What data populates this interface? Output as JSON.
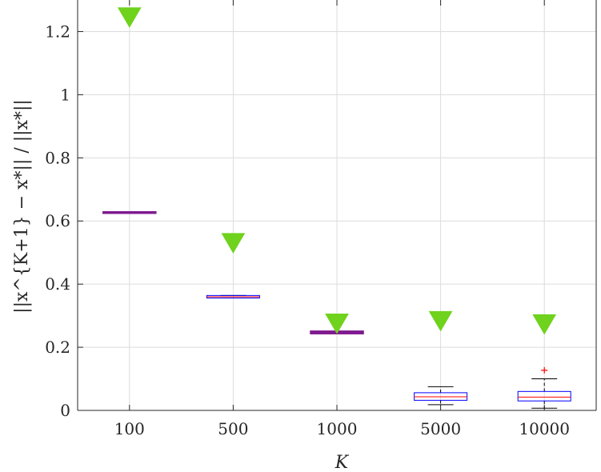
{
  "chart_data": {
    "type": "boxplot",
    "categories": [
      "100",
      "500",
      "1000",
      "5000",
      "10000"
    ],
    "xlabel": "K",
    "ylabel": "||x^{K+1} − x*|| / ||x*||",
    "ylim": [
      0,
      1.3
    ],
    "yticks": [
      0,
      0.2,
      0.4,
      0.6,
      0.8,
      1,
      1.2
    ],
    "ytick_labels": [
      "0",
      "0.2",
      "0.4",
      "0.6",
      "0.8",
      "1",
      "1.2"
    ],
    "grid": true,
    "series": [
      {
        "kind": "boxplot",
        "boxes": [
          {
            "category": "100",
            "min": 0.626,
            "q1": 0.626,
            "median": 0.627,
            "q3": 0.628,
            "max": 0.628,
            "outliers": []
          },
          {
            "category": "500",
            "min": 0.356,
            "q1": 0.356,
            "median": 0.36,
            "q3": 0.364,
            "max": 0.364,
            "outliers": []
          },
          {
            "category": "1000",
            "min": 0.244,
            "q1": 0.244,
            "median": 0.246,
            "q3": 0.25,
            "max": 0.25,
            "outliers": []
          },
          {
            "category": "5000",
            "min": 0.018,
            "q1": 0.032,
            "median": 0.043,
            "q3": 0.056,
            "max": 0.075,
            "outliers": []
          },
          {
            "category": "10000",
            "min": 0.007,
            "q1": 0.03,
            "median": 0.042,
            "q3": 0.06,
            "max": 0.1,
            "outliers": [
              0.127
            ]
          }
        ],
        "box_color": "#0000ff",
        "median_color": "#ff0000",
        "whisker_color": "#000000",
        "overlap_color": "#7f1a8f",
        "outlier_color": "#ff0000"
      },
      {
        "kind": "markers",
        "marker": "triangle-down",
        "color": "#6fd21c",
        "values": [
          1.255,
          0.54,
          0.285,
          0.293,
          0.283
        ]
      }
    ]
  }
}
